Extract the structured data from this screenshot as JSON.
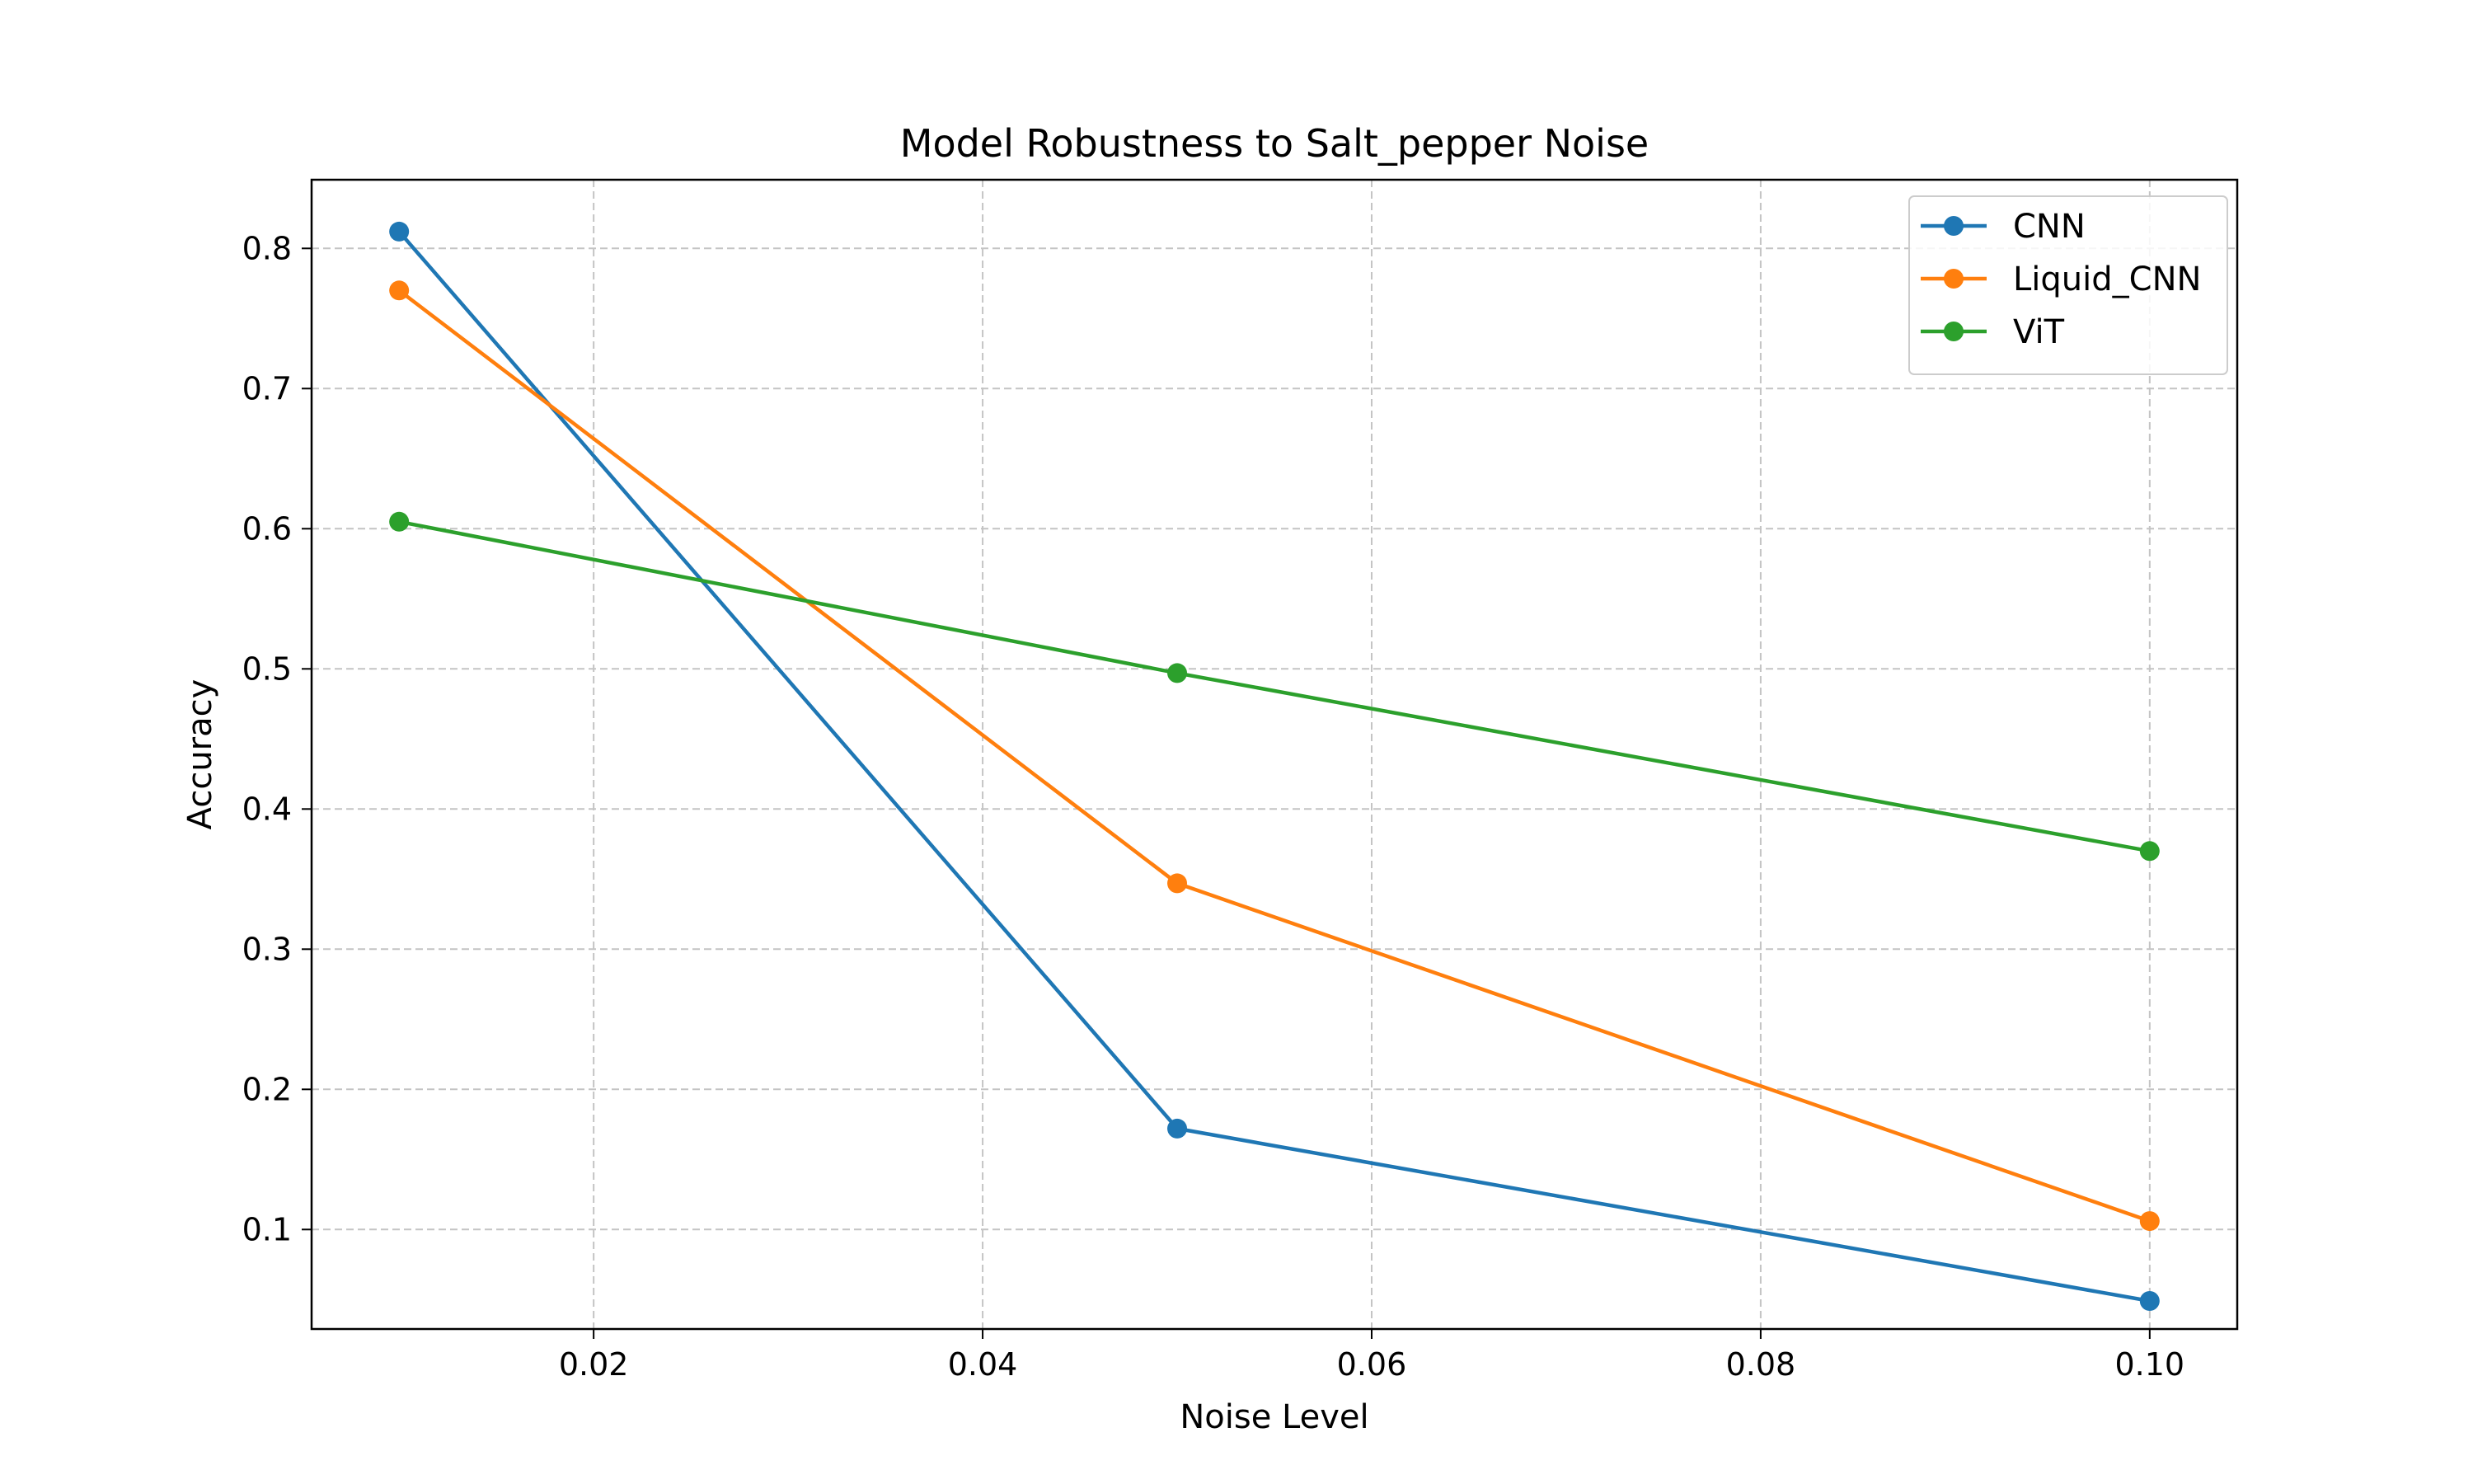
{
  "chart_data": {
    "type": "line",
    "title": "Model Robustness to Salt_pepper Noise",
    "xlabel": "Noise Level",
    "ylabel": "Accuracy",
    "x": [
      0.01,
      0.05,
      0.1
    ],
    "xlim": [
      0.0055,
      0.1045
    ],
    "ylim": [
      0.029,
      0.849
    ],
    "xticks": [
      0.02,
      0.04,
      0.06,
      0.08,
      0.1
    ],
    "xtick_labels": [
      "0.02",
      "0.04",
      "0.06",
      "0.08",
      "0.10"
    ],
    "yticks": [
      0.1,
      0.2,
      0.3,
      0.4,
      0.5,
      0.6,
      0.7,
      0.8
    ],
    "ytick_labels": [
      "0.1",
      "0.2",
      "0.3",
      "0.4",
      "0.5",
      "0.6",
      "0.7",
      "0.8"
    ],
    "grid": true,
    "legend_position": "top-right",
    "series": [
      {
        "name": "CNN",
        "color": "#1f77b4",
        "values": [
          0.812,
          0.172,
          0.049
        ]
      },
      {
        "name": "Liquid_CNN",
        "color": "#ff7f0e",
        "values": [
          0.77,
          0.347,
          0.106
        ]
      },
      {
        "name": "ViT",
        "color": "#2ca02c",
        "values": [
          0.605,
          0.497,
          0.37
        ]
      }
    ]
  }
}
